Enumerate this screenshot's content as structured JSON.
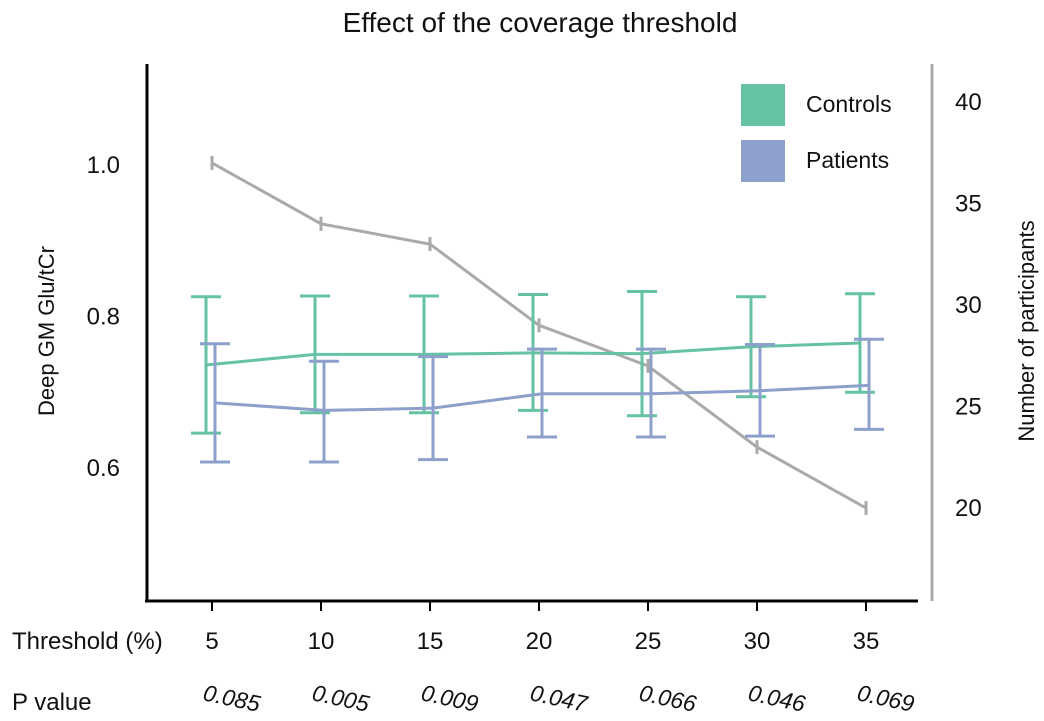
{
  "chart_data": {
    "type": "line",
    "title": "Effect of the coverage threshold",
    "xlabel": "Threshold (%)",
    "ylabel": "Deep GM Glu/tCr",
    "y2label": "Number of participants",
    "categories": [
      5,
      10,
      15,
      20,
      25,
      30,
      35
    ],
    "ylim": [
      0.5,
      1.08
    ],
    "yticks": [
      "0.6",
      "0.8",
      "1.0"
    ],
    "y2lim": [
      15,
      41.5
    ],
    "y2ticks": [
      "20",
      "25",
      "30",
      "35",
      "40"
    ],
    "series": [
      {
        "name": "Controls",
        "axis": "left",
        "color": "#66c2a5",
        "values": [
          0.736,
          0.75,
          0.75,
          0.752,
          0.751,
          0.76,
          0.765
        ],
        "err_low": [
          0.646,
          0.673,
          0.673,
          0.676,
          0.669,
          0.694,
          0.7
        ],
        "err_high": [
          0.826,
          0.827,
          0.827,
          0.829,
          0.833,
          0.826,
          0.83
        ]
      },
      {
        "name": "Patients",
        "axis": "left",
        "color": "#8da0cb",
        "values": [
          0.686,
          0.676,
          0.679,
          0.698,
          0.698,
          0.702,
          0.709
        ],
        "err_low": [
          0.608,
          0.608,
          0.611,
          0.641,
          0.641,
          0.642,
          0.651
        ],
        "err_high": [
          0.764,
          0.741,
          0.747,
          0.757,
          0.757,
          0.763,
          0.77
        ]
      },
      {
        "name": "",
        "axis": "right",
        "color": "#aaaaaa",
        "values": [
          37,
          34,
          33,
          29,
          27,
          23,
          20
        ]
      }
    ],
    "p_label": "P value",
    "p_values": [
      "0.085",
      "0.005",
      "0.009",
      "0.047",
      "0.066",
      "0.046",
      "0.069"
    ],
    "legend_position": "top-right",
    "grid": false
  }
}
